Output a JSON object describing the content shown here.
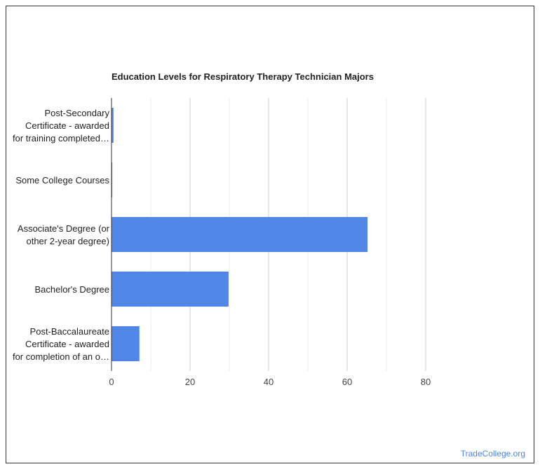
{
  "chart_data": {
    "type": "bar",
    "orientation": "horizontal",
    "title": "Education Levels for Respiratory Therapy Technician Majors",
    "categories": [
      [
        "Post-Secondary",
        "Certificate - awarded",
        "for training completed…"
      ],
      [
        "Some College Courses"
      ],
      [
        "Associate's Degree (or",
        "other 2-year degree)"
      ],
      [
        "Bachelor's Degree"
      ],
      [
        "Post-Baccalaureate",
        "Certificate - awarded",
        "for completion of an o…"
      ]
    ],
    "values": [
      0.5,
      0.2,
      65.2,
      29.8,
      7.1
    ],
    "xlim": [
      0,
      80
    ],
    "xticks": [
      0,
      20,
      40,
      60,
      80
    ],
    "grid": true,
    "bar_color": "#5086e6",
    "xlabel": "",
    "ylabel": ""
  },
  "credit": "TradeCollege.org"
}
